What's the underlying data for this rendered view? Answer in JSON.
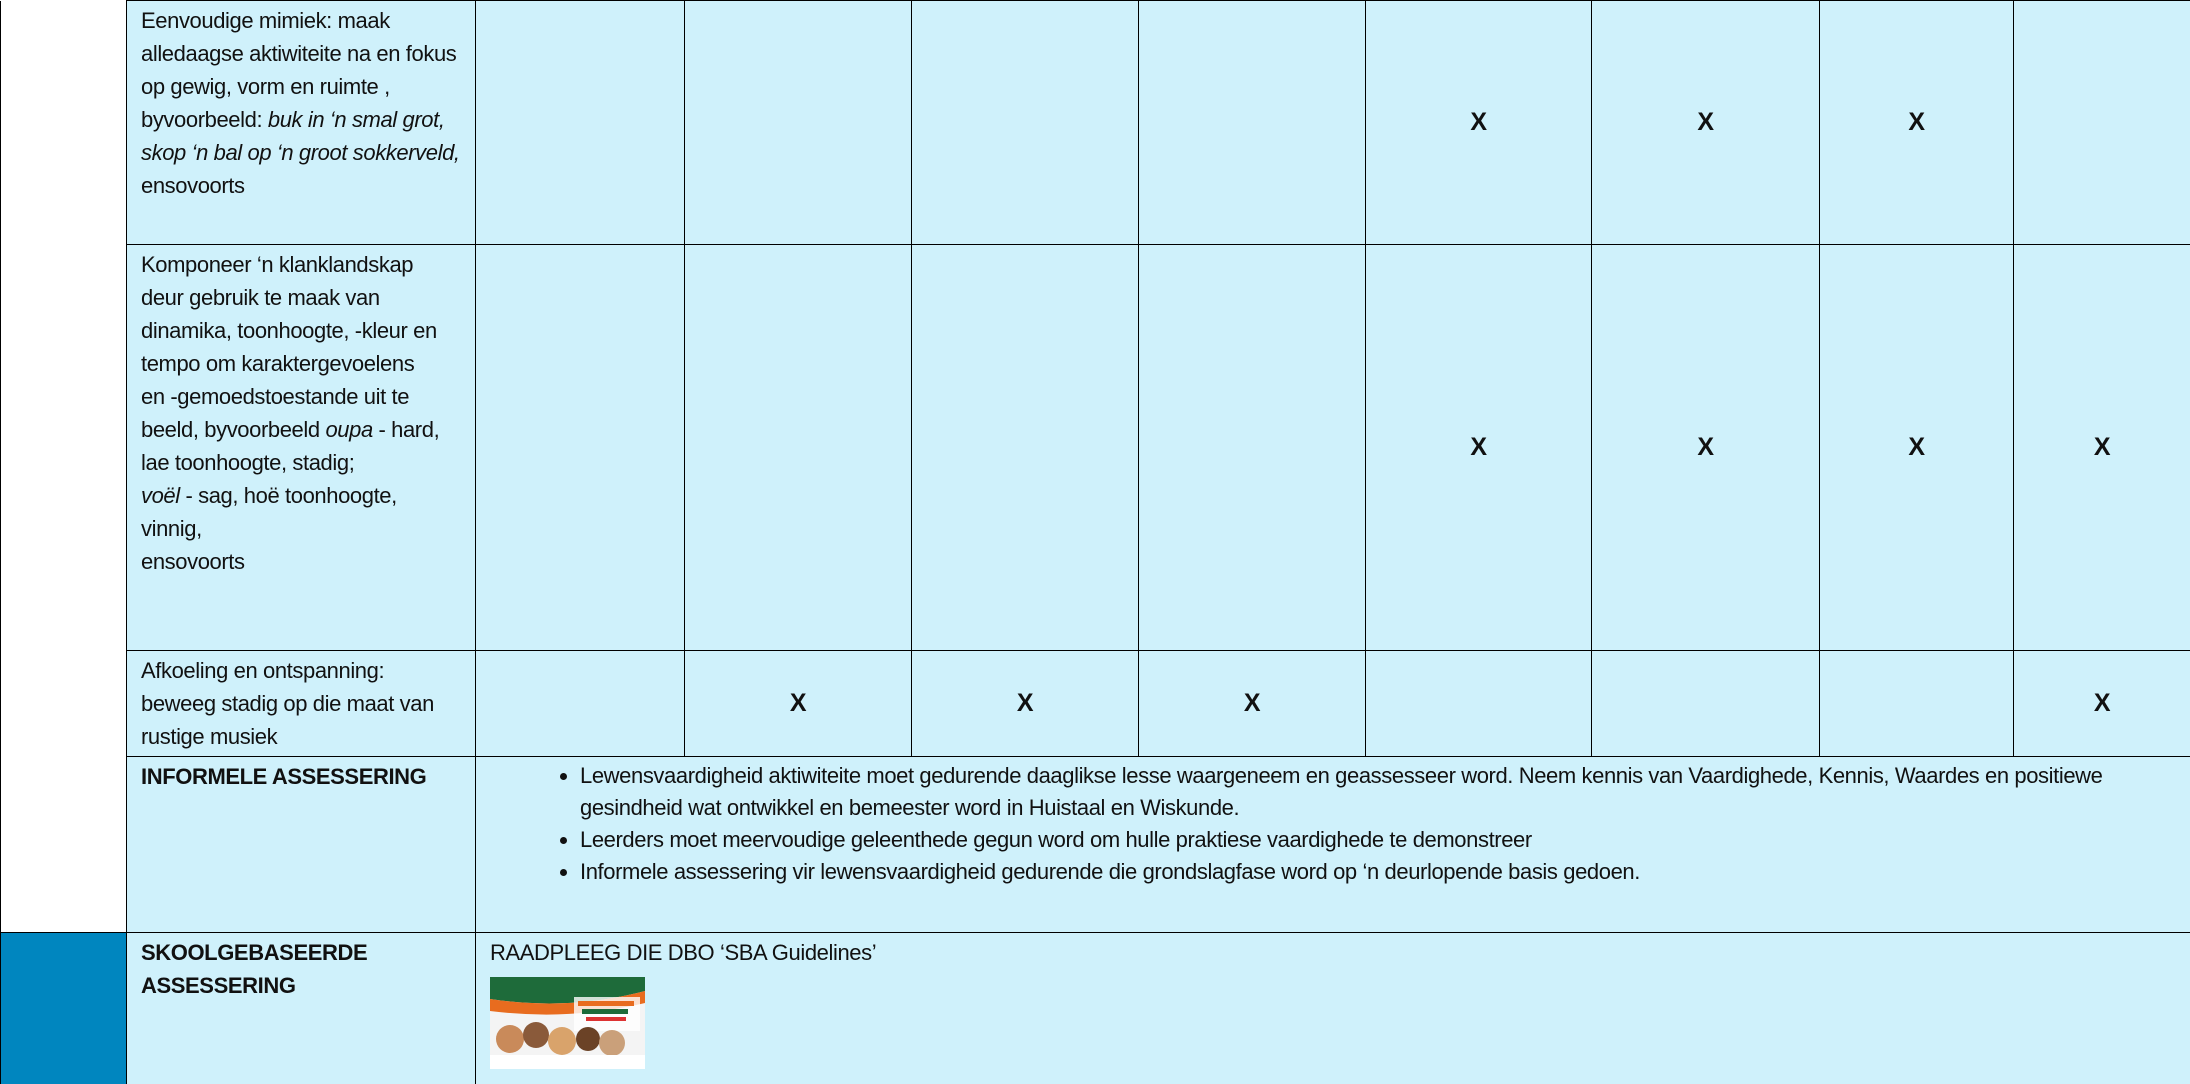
{
  "table": {
    "rows": [
      {
        "activity": [
          {
            "text": "Eenvoudige mimiek: maak alledaagse aktiwiteite na en fokus op gewig, vorm en ruimte , byvoorbeeld: ",
            "italic": false
          },
          {
            "text": "buk in ‘n smal grot, skop ‘n bal op ‘n groot sokkerveld,",
            "italic": true
          },
          {
            "text": " ensovoorts",
            "italic": false
          }
        ],
        "marks": [
          null,
          null,
          null,
          null,
          "X",
          "X",
          "X",
          null
        ]
      },
      {
        "activity": [
          {
            "text": "Komponeer ‘n klanklandskap deur gebruik te maak van dinamika, toonhoogte, -kleur en tempo om karaktergevoelens\nen -gemoedstoestande uit te beeld, byvoorbeeld ",
            "italic": false
          },
          {
            "text": "oupa",
            "italic": true
          },
          {
            "text": " - hard, lae toonhoogte, stadig;\n",
            "italic": false
          },
          {
            "text": "voël",
            "italic": true
          },
          {
            "text": " - sag, hoë toonhoogte, vinnig,\nensovoorts",
            "italic": false
          }
        ],
        "marks": [
          null,
          null,
          null,
          null,
          "X",
          "X",
          "X",
          "X"
        ]
      },
      {
        "activity": [
          {
            "text": "Afkoeling en ontspanning: beweeg stadig op die maat van rustige musiek",
            "italic": false
          }
        ],
        "marks": [
          null,
          "X",
          "X",
          "X",
          null,
          null,
          null,
          "X"
        ]
      }
    ],
    "informal": {
      "label": "INFORMELE ASSESSERING",
      "bullets": [
        "Lewensvaardigheid aktiwiteite moet gedurende daaglikse lesse waargeneem en geassesseer word. Neem kennis van Vaardighede, Kennis, Waardes en positiewe gesindheid wat ontwikkel en bemeester word in Huistaal en Wiskunde.",
        "Leerders moet meervoudige geleenthede gegun word om hulle praktiese vaardighede te demonstreer",
        "Informele assessering vir lewensvaardigheid gedurende die grondslagfase word op ‘n deurlopende basis gedoen."
      ]
    },
    "sba": {
      "label": "SKOOLGEBASEERDE ASSESSERING",
      "text": "RAADPLEEG DIE DBO ‘SBA Guidelines’"
    }
  }
}
